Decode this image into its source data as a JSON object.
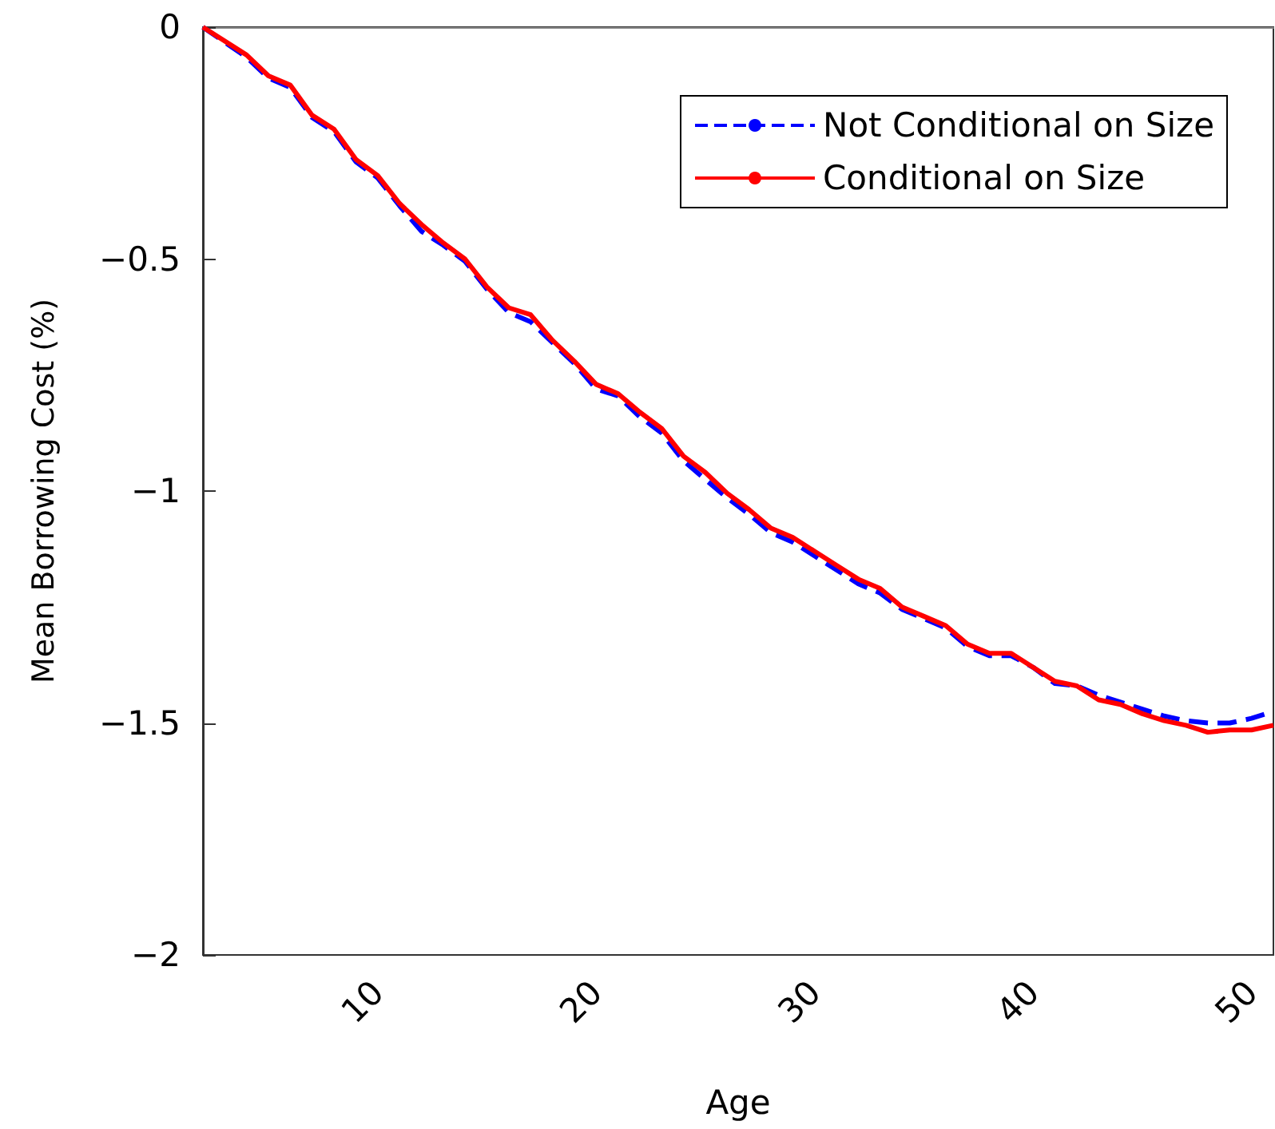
{
  "chart_data": {
    "type": "line",
    "xlabel": "Age",
    "ylabel": "Mean Borrowing Cost (%)",
    "x": [
      2,
      4,
      5,
      6,
      7,
      8,
      9,
      10,
      11,
      12,
      13,
      14,
      15,
      16,
      17,
      18,
      19,
      20,
      21,
      22,
      23,
      24,
      25,
      26,
      27,
      28,
      29,
      30,
      31,
      32,
      33,
      34,
      35,
      36,
      37,
      38,
      39,
      40,
      41,
      42,
      43,
      44,
      45,
      46,
      47,
      48,
      49,
      50,
      51
    ],
    "series": [
      {
        "name": "Not Conditional on Size",
        "color": "#0000ff",
        "line_style": "dashed",
        "values": [
          0,
          -0.065,
          -0.11,
          -0.13,
          -0.195,
          -0.225,
          -0.29,
          -0.325,
          -0.385,
          -0.44,
          -0.47,
          -0.505,
          -0.565,
          -0.615,
          -0.635,
          -0.68,
          -0.725,
          -0.78,
          -0.795,
          -0.84,
          -0.875,
          -0.935,
          -0.975,
          -1.015,
          -1.05,
          -1.09,
          -1.11,
          -1.14,
          -1.17,
          -1.2,
          -1.22,
          -1.255,
          -1.275,
          -1.295,
          -1.335,
          -1.355,
          -1.355,
          -1.38,
          -1.415,
          -1.42,
          -1.44,
          -1.455,
          -1.47,
          -1.485,
          -1.495,
          -1.5,
          -1.5,
          -1.49,
          -1.475
        ]
      },
      {
        "name": "Conditional on Size",
        "color": "#ff0000",
        "line_style": "solid",
        "values": [
          0,
          -0.06,
          -0.105,
          -0.125,
          -0.19,
          -0.22,
          -0.285,
          -0.32,
          -0.38,
          -0.425,
          -0.465,
          -0.5,
          -0.56,
          -0.605,
          -0.62,
          -0.675,
          -0.72,
          -0.77,
          -0.79,
          -0.83,
          -0.865,
          -0.925,
          -0.96,
          -1.005,
          -1.04,
          -1.08,
          -1.1,
          -1.13,
          -1.16,
          -1.19,
          -1.21,
          -1.25,
          -1.27,
          -1.29,
          -1.33,
          -1.35,
          -1.35,
          -1.38,
          -1.41,
          -1.42,
          -1.45,
          -1.46,
          -1.48,
          -1.495,
          -1.505,
          -1.52,
          -1.515,
          -1.515,
          -1.505
        ]
      }
    ],
    "xlim": [
      2,
      51
    ],
    "xticks": [
      10,
      20,
      30,
      40,
      50
    ],
    "ylim": [
      -2,
      0
    ],
    "yticks": [
      0,
      -0.5,
      -1,
      -1.5,
      -2
    ],
    "grid": false,
    "legend": "top right",
    "marker": "none"
  }
}
